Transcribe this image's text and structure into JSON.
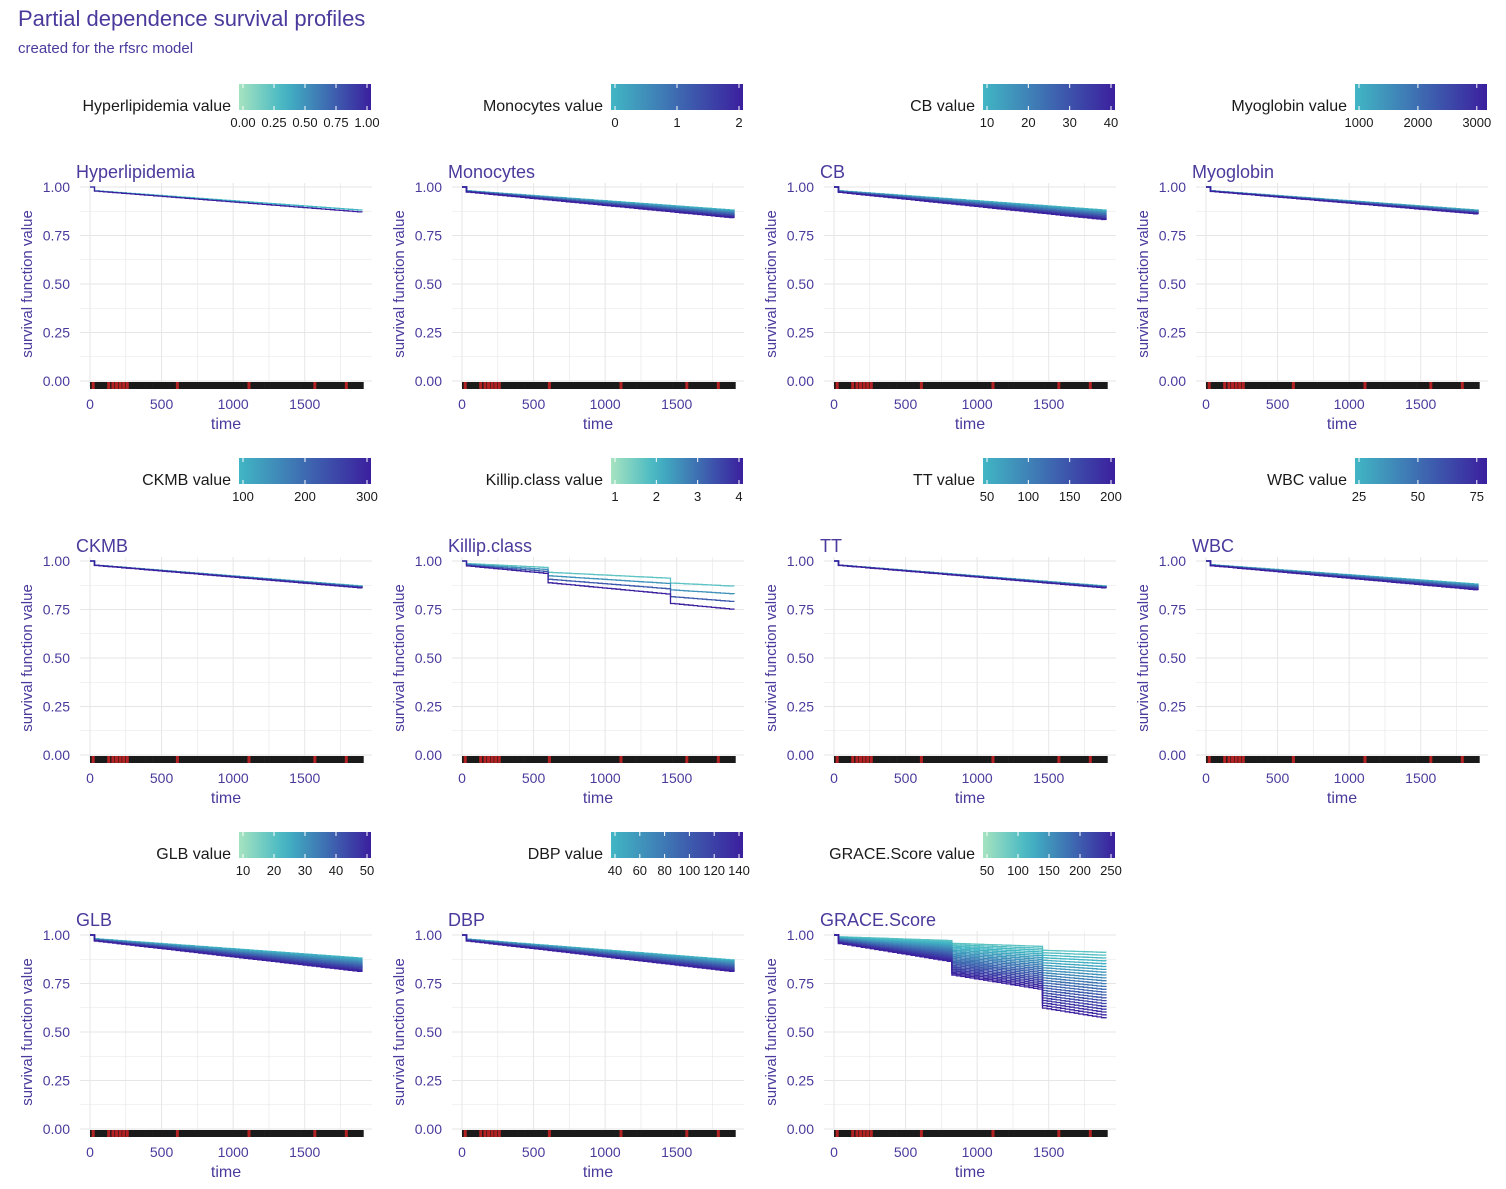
{
  "header": {
    "title": "Partial dependence survival profiles",
    "subtitle": "created for the rfsrc model"
  },
  "colors": {
    "title": "#4b3a9c",
    "axis_text": "#4b3a9c",
    "grid": "#e6e6e6",
    "rug_censored": "#1a1a1a",
    "rug_event": "#b22222",
    "scale_low": "#a6e3c0",
    "scale_mid": "#41b6c4",
    "scale_high": "#3b1f9e"
  },
  "chart_data": [
    {
      "type": "line",
      "title": "Hyperlipidemia",
      "legend_title": "Hyperlipidemia value",
      "legend_ticks": [
        "0.00",
        "0.25",
        "0.50",
        "0.75",
        "1.00"
      ],
      "xlabel": "time",
      "ylabel": "survival function value",
      "xlim": [
        0,
        1900
      ],
      "ylim": [
        0,
        1
      ],
      "x_ticks": [
        "0",
        "500",
        "1000",
        "1500"
      ],
      "y_ticks": [
        "0.00",
        "0.25",
        "0.50",
        "0.75",
        "1.00"
      ],
      "series_count": 2,
      "final_survival_range": [
        0.87,
        0.88
      ],
      "drops": [],
      "spread_growth": 0.0
    },
    {
      "type": "line",
      "title": "Monocytes",
      "legend_title": "Monocytes value",
      "legend_ticks": [
        "0",
        "1",
        "2"
      ],
      "xlabel": "time",
      "ylabel": "survival function value",
      "xlim": [
        0,
        1900
      ],
      "ylim": [
        0,
        1
      ],
      "x_ticks": [
        "0",
        "500",
        "1000",
        "1500"
      ],
      "y_ticks": [
        "0.00",
        "0.25",
        "0.50",
        "0.75",
        "1.00"
      ],
      "series_count": 12,
      "final_survival_range": [
        0.84,
        0.88
      ],
      "drops": [],
      "spread_growth": 0.0
    },
    {
      "type": "line",
      "title": "CB",
      "legend_title": "CB value",
      "legend_ticks": [
        "10",
        "20",
        "30",
        "40"
      ],
      "xlabel": "time",
      "ylabel": "survival function value",
      "xlim": [
        0,
        1900
      ],
      "ylim": [
        0,
        1
      ],
      "x_ticks": [
        "0",
        "500",
        "1000",
        "1500"
      ],
      "y_ticks": [
        "0.00",
        "0.25",
        "0.50",
        "0.75",
        "1.00"
      ],
      "series_count": 12,
      "final_survival_range": [
        0.83,
        0.88
      ],
      "drops": [],
      "spread_growth": 0.0
    },
    {
      "type": "line",
      "title": "Myoglobin",
      "legend_title": "Myoglobin value",
      "legend_ticks": [
        "1000",
        "2000",
        "3000"
      ],
      "xlabel": "time",
      "ylabel": "survival function value",
      "xlim": [
        0,
        1900
      ],
      "ylim": [
        0,
        1
      ],
      "x_ticks": [
        "0",
        "500",
        "1000",
        "1500"
      ],
      "y_ticks": [
        "0.00",
        "0.25",
        "0.50",
        "0.75",
        "1.00"
      ],
      "series_count": 10,
      "final_survival_range": [
        0.86,
        0.88
      ],
      "drops": [],
      "spread_growth": 0.0
    },
    {
      "type": "line",
      "title": "CKMB",
      "legend_title": "CKMB value",
      "legend_ticks": [
        "100",
        "200",
        "300"
      ],
      "xlabel": "time",
      "ylabel": "survival function value",
      "xlim": [
        0,
        1900
      ],
      "ylim": [
        0,
        1
      ],
      "x_ticks": [
        "0",
        "500",
        "1000",
        "1500"
      ],
      "y_ticks": [
        "0.00",
        "0.25",
        "0.50",
        "0.75",
        "1.00"
      ],
      "series_count": 6,
      "final_survival_range": [
        0.86,
        0.87
      ],
      "drops": [],
      "spread_growth": 0.0
    },
    {
      "type": "line",
      "title": "Killip.class",
      "legend_title": "Killip.class value",
      "legend_ticks": [
        "1",
        "2",
        "3",
        "4"
      ],
      "xlabel": "time",
      "ylabel": "survival function value",
      "xlim": [
        0,
        1900
      ],
      "ylim": [
        0,
        1
      ],
      "x_ticks": [
        "0",
        "500",
        "1000",
        "1500"
      ],
      "y_ticks": [
        "0.00",
        "0.25",
        "0.50",
        "0.75",
        "1.00"
      ],
      "series_count": 4,
      "final_survival_range": [
        0.75,
        0.87
      ],
      "drops": [
        [
          600,
          0.3
        ],
        [
          1450,
          0.3
        ]
      ],
      "spread_growth": 0.2
    },
    {
      "type": "line",
      "title": "TT",
      "legend_title": "TT value",
      "legend_ticks": [
        "50",
        "100",
        "150",
        "200"
      ],
      "xlabel": "time",
      "ylabel": "survival function value",
      "xlim": [
        0,
        1900
      ],
      "ylim": [
        0,
        1
      ],
      "x_ticks": [
        "0",
        "500",
        "1000",
        "1500"
      ],
      "y_ticks": [
        "0.00",
        "0.25",
        "0.50",
        "0.75",
        "1.00"
      ],
      "series_count": 8,
      "final_survival_range": [
        0.86,
        0.87
      ],
      "drops": [],
      "spread_growth": 0.0
    },
    {
      "type": "line",
      "title": "WBC",
      "legend_title": "WBC value",
      "legend_ticks": [
        "25",
        "50",
        "75"
      ],
      "xlabel": "time",
      "ylabel": "survival function value",
      "xlim": [
        0,
        1900
      ],
      "ylim": [
        0,
        1
      ],
      "x_ticks": [
        "0",
        "500",
        "1000",
        "1500"
      ],
      "y_ticks": [
        "0.00",
        "0.25",
        "0.50",
        "0.75",
        "1.00"
      ],
      "series_count": 10,
      "final_survival_range": [
        0.85,
        0.88
      ],
      "drops": [],
      "spread_growth": 0.0
    },
    {
      "type": "line",
      "title": "GLB",
      "legend_title": "GLB value",
      "legend_ticks": [
        "10",
        "20",
        "30",
        "40",
        "50"
      ],
      "xlabel": "time",
      "ylabel": "survival function value",
      "xlim": [
        0,
        1900
      ],
      "ylim": [
        0,
        1
      ],
      "x_ticks": [
        "0",
        "500",
        "1000",
        "1500"
      ],
      "y_ticks": [
        "0.00",
        "0.25",
        "0.50",
        "0.75",
        "1.00"
      ],
      "series_count": 14,
      "final_survival_range": [
        0.81,
        0.88
      ],
      "drops": [],
      "spread_growth": 0.0
    },
    {
      "type": "line",
      "title": "DBP",
      "legend_title": "DBP value",
      "legend_ticks": [
        "40",
        "60",
        "80",
        "100",
        "120",
        "140"
      ],
      "xlabel": "time",
      "ylabel": "survival function value",
      "xlim": [
        0,
        1900
      ],
      "ylim": [
        0,
        1
      ],
      "x_ticks": [
        "0",
        "500",
        "1000",
        "1500"
      ],
      "y_ticks": [
        "0.00",
        "0.25",
        "0.50",
        "0.75",
        "1.00"
      ],
      "series_count": 14,
      "final_survival_range": [
        0.81,
        0.87
      ],
      "drops": [],
      "spread_growth": 0.0
    },
    {
      "type": "line",
      "title": "GRACE.Score",
      "legend_title": "GRACE.Score value",
      "legend_ticks": [
        "50",
        "100",
        "150",
        "200",
        "250"
      ],
      "xlabel": "time",
      "ylabel": "survival function value",
      "xlim": [
        0,
        1900
      ],
      "ylim": [
        0,
        1
      ],
      "x_ticks": [
        "0",
        "500",
        "1000",
        "1500"
      ],
      "y_ticks": [
        "0.00",
        "0.25",
        "0.50",
        "0.75",
        "1.00"
      ],
      "series_count": 24,
      "final_survival_range": [
        0.57,
        0.91
      ],
      "drops": [
        [
          800,
          0.25
        ],
        [
          1450,
          0.35
        ]
      ],
      "spread_growth": 0.55
    }
  ]
}
